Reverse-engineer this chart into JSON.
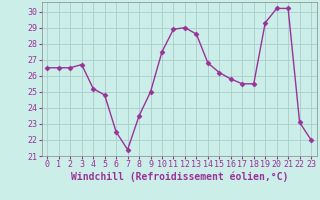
{
  "x": [
    0,
    1,
    2,
    3,
    4,
    5,
    6,
    7,
    8,
    9,
    10,
    11,
    12,
    13,
    14,
    15,
    16,
    17,
    18,
    19,
    20,
    21,
    22,
    23
  ],
  "y": [
    26.5,
    26.5,
    26.5,
    26.7,
    25.2,
    24.8,
    22.5,
    21.4,
    23.5,
    25.0,
    27.5,
    28.9,
    29.0,
    28.6,
    26.8,
    26.2,
    25.8,
    25.5,
    25.5,
    29.3,
    30.2,
    30.2,
    23.1,
    22.0
  ],
  "line_color": "#993399",
  "marker": "D",
  "markersize": 2.5,
  "bg_color": "#cceee8",
  "grid_color": "#aacccc",
  "xlabel": "Windchill (Refroidissement éolien,°C)",
  "xlabel_fontsize": 7,
  "ylabel_ticks": [
    21,
    22,
    23,
    24,
    25,
    26,
    27,
    28,
    29,
    30
  ],
  "xlim": [
    -0.5,
    23.5
  ],
  "ylim": [
    21,
    30.6
  ],
  "tick_fontsize": 6,
  "linewidth": 1.0
}
